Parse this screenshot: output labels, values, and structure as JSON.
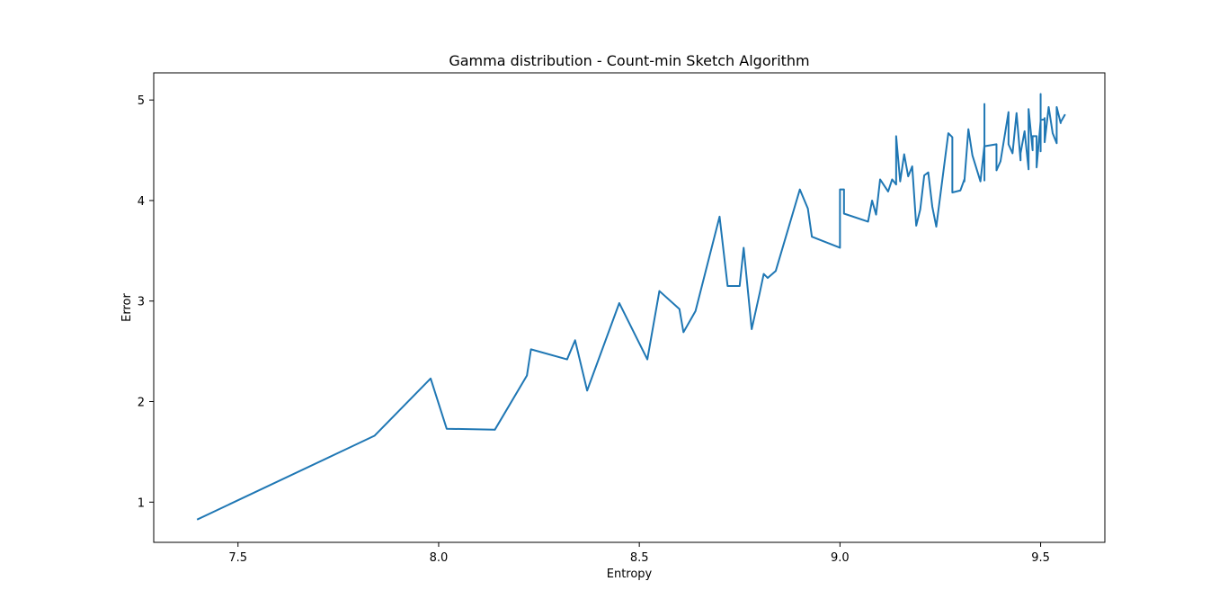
{
  "chart_data": {
    "type": "line",
    "title": "Gamma distribution - Count-min Sketch Algorithm",
    "xlabel": "Entropy",
    "ylabel": "Error",
    "xlim": [
      7.29,
      9.66
    ],
    "ylim": [
      0.6,
      5.27
    ],
    "xticks": [
      "7.5",
      "8.0",
      "8.5",
      "9.0",
      "9.5"
    ],
    "yticks": [
      "1",
      "2",
      "3",
      "4",
      "5"
    ],
    "grid": false,
    "series_color": "#1f77b4",
    "series": [
      {
        "x": [
          7.4,
          7.84,
          7.98,
          8.02,
          8.14,
          8.22,
          8.23,
          8.32,
          8.34,
          8.37,
          8.45,
          8.52,
          8.55,
          8.6,
          8.61,
          8.64,
          8.7,
          8.72,
          8.75,
          8.76,
          8.78,
          8.8,
          8.81,
          8.82,
          8.84,
          8.9,
          8.92,
          8.93,
          9.0,
          9.0,
          9.01,
          9.01,
          9.07,
          9.08,
          9.09,
          9.1,
          9.12,
          9.13,
          9.14,
          9.14,
          9.15,
          9.16,
          9.17,
          9.18,
          9.19,
          9.2,
          9.21,
          9.22,
          9.23,
          9.24,
          9.27,
          9.28,
          9.28,
          9.3,
          9.31,
          9.31,
          9.32,
          9.33,
          9.35,
          9.36,
          9.36,
          9.36,
          9.36,
          9.39,
          9.39,
          9.4,
          9.42,
          9.42,
          9.43,
          9.44,
          9.45,
          9.45,
          9.46,
          9.47,
          9.47,
          9.48,
          9.48,
          9.49,
          9.49,
          9.5,
          9.5,
          9.5,
          9.5,
          9.51,
          9.51,
          9.51,
          9.52,
          9.53,
          9.54,
          9.54,
          9.55,
          9.55,
          9.56
        ],
        "y": [
          0.83,
          1.66,
          2.23,
          1.73,
          1.72,
          2.26,
          2.52,
          2.42,
          2.61,
          2.11,
          2.98,
          2.42,
          3.1,
          2.92,
          2.69,
          2.9,
          3.84,
          3.15,
          3.15,
          3.53,
          2.72,
          3.08,
          3.27,
          3.23,
          3.3,
          4.11,
          3.92,
          3.64,
          3.53,
          4.11,
          4.11,
          3.87,
          3.79,
          4.0,
          3.86,
          4.21,
          4.09,
          4.21,
          4.16,
          4.64,
          4.19,
          4.46,
          4.24,
          4.34,
          3.75,
          3.91,
          4.25,
          4.28,
          3.94,
          3.74,
          4.67,
          4.63,
          4.08,
          4.1,
          4.21,
          4.19,
          4.71,
          4.45,
          4.19,
          4.55,
          4.96,
          4.2,
          4.54,
          4.56,
          4.3,
          4.39,
          4.88,
          4.56,
          4.47,
          4.87,
          4.4,
          4.47,
          4.69,
          4.31,
          4.91,
          4.5,
          4.64,
          4.64,
          4.33,
          4.79,
          5.06,
          4.49,
          4.8,
          4.81,
          4.82,
          4.58,
          4.93,
          4.67,
          4.57,
          4.93,
          4.77,
          4.78,
          4.85
        ]
      }
    ]
  }
}
